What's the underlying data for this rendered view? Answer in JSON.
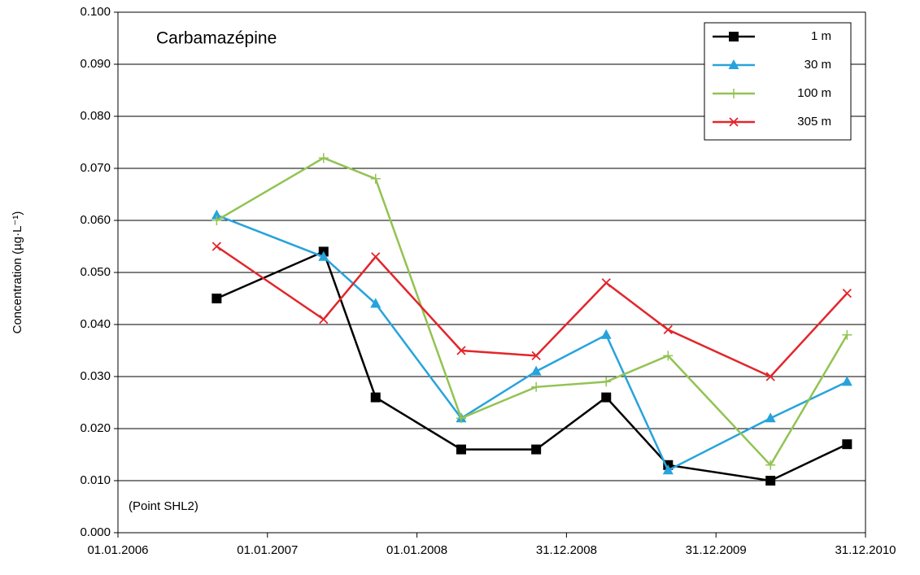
{
  "chart_data": {
    "type": "line",
    "annotations": [
      "Carbamazépine",
      "(Point SHL2)"
    ],
    "y_label": "Concentration  (µg·L⁻¹)",
    "x": [
      "30.08.2006",
      "18.05.2007",
      "22.09.2007",
      "18.04.2008",
      "18.10.2008",
      "07.04.2009",
      "05.09.2009",
      "13.05.2010",
      "16.11.2010"
    ],
    "series": [
      {
        "name": "1 m",
        "color": "#000000",
        "marker": "square",
        "values": [
          0.045,
          0.054,
          0.026,
          0.016,
          0.016,
          0.026,
          0.013,
          0.01,
          0.017
        ]
      },
      {
        "name": "30 m",
        "color": "#27a3dc",
        "marker": "triangle",
        "values": [
          0.061,
          0.053,
          0.044,
          0.022,
          0.031,
          0.038,
          0.012,
          0.022,
          0.029
        ]
      },
      {
        "name": "100 m",
        "color": "#92c353",
        "marker": "plus",
        "values": [
          0.06,
          0.072,
          0.068,
          0.022,
          0.028,
          0.029,
          0.034,
          0.013,
          0.038
        ]
      },
      {
        "name": "305 m",
        "color": "#e2262b",
        "marker": "cross",
        "values": [
          0.055,
          0.041,
          0.053,
          0.035,
          0.034,
          0.048,
          0.039,
          0.03,
          0.046
        ]
      }
    ],
    "xlim": [
      "01.01.2006",
      "31.12.2010"
    ],
    "xticks": [
      "01.01.2006",
      "01.01.2007",
      "01.01.2008",
      "31.12.2008",
      "31.12.2009",
      "31.12.2010"
    ],
    "ylim": [
      0,
      0.1
    ],
    "yticks": [
      {
        "value": 0,
        "label": "0.000"
      },
      {
        "value": 0.01,
        "label": "0.010"
      },
      {
        "value": 0.02,
        "label": "0.020"
      },
      {
        "value": 0.03,
        "label": "0.030"
      },
      {
        "value": 0.04,
        "label": "0.040"
      },
      {
        "value": 0.05,
        "label": "0.050"
      },
      {
        "value": 0.06,
        "label": "0.060"
      },
      {
        "value": 0.07,
        "label": "0.070"
      },
      {
        "value": 0.08,
        "label": "0.080"
      },
      {
        "value": 0.09,
        "label": "0.090"
      },
      {
        "value": 0.1,
        "label": "0.100"
      }
    ],
    "grid": true,
    "legend": "upper right"
  }
}
